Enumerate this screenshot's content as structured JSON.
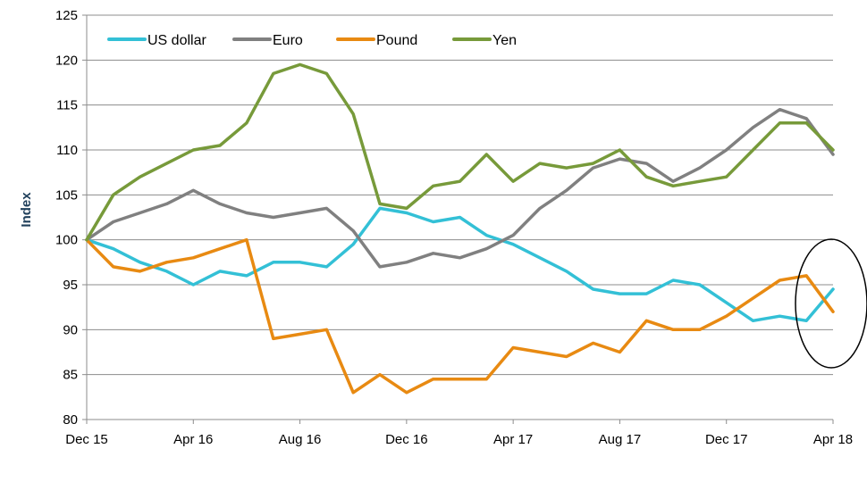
{
  "chart_data": {
    "type": "line",
    "title": "",
    "xlabel": "",
    "ylabel": "Index",
    "ylim": [
      80,
      125
    ],
    "yticks": [
      "80",
      "85",
      "90",
      "95",
      "100",
      "105",
      "110",
      "115",
      "120",
      "125"
    ],
    "xlim": [
      "2015-12",
      "2018-04"
    ],
    "xticks": [
      "Dec 15",
      "Apr 16",
      "Aug 16",
      "Dec 16",
      "Apr 17",
      "Aug 17",
      "Dec 17",
      "Apr 18"
    ],
    "grid": "horizontal",
    "legend": "top-left",
    "annotation": "ellipse around Apr 18 values",
    "series": [
      {
        "name": "US dollar",
        "color": "#33c0d6",
        "x": [
          "2015-12",
          "2016-01",
          "2016-02",
          "2016-03",
          "2016-04",
          "2016-05",
          "2016-06",
          "2016-07",
          "2016-08",
          "2016-09",
          "2016-10",
          "2016-11",
          "2016-12",
          "2017-01",
          "2017-02",
          "2017-03",
          "2017-04",
          "2017-05",
          "2017-06",
          "2017-07",
          "2017-08",
          "2017-09",
          "2017-10",
          "2017-11",
          "2017-12",
          "2018-01",
          "2018-02",
          "2018-03",
          "2018-04"
        ],
        "values": [
          100.0,
          99.0,
          97.5,
          96.5,
          95.0,
          96.5,
          96.0,
          97.5,
          97.5,
          97.0,
          99.5,
          103.5,
          103.0,
          102.0,
          102.5,
          100.5,
          99.5,
          98.0,
          96.5,
          94.5,
          94.0,
          94.0,
          95.5,
          95.0,
          93.0,
          91.0,
          91.5,
          91.0,
          94.5
        ]
      },
      {
        "name": "Euro",
        "color": "#808080",
        "x": [
          "2015-12",
          "2016-01",
          "2016-02",
          "2016-03",
          "2016-04",
          "2016-05",
          "2016-06",
          "2016-07",
          "2016-08",
          "2016-09",
          "2016-10",
          "2016-11",
          "2016-12",
          "2017-01",
          "2017-02",
          "2017-03",
          "2017-04",
          "2017-05",
          "2017-06",
          "2017-07",
          "2017-08",
          "2017-09",
          "2017-10",
          "2017-11",
          "2017-12",
          "2018-01",
          "2018-02",
          "2018-03",
          "2018-04"
        ],
        "values": [
          100.0,
          102.0,
          103.0,
          104.0,
          105.5,
          104.0,
          103.0,
          102.5,
          103.0,
          103.5,
          101.0,
          97.0,
          97.5,
          98.5,
          98.0,
          99.0,
          100.5,
          103.5,
          105.5,
          108.0,
          109.0,
          108.5,
          106.5,
          108.0,
          110.0,
          112.5,
          114.5,
          113.5,
          109.5
        ]
      },
      {
        "name": "Pound",
        "color": "#e88a12",
        "x": [
          "2015-12",
          "2016-01",
          "2016-02",
          "2016-03",
          "2016-04",
          "2016-05",
          "2016-06",
          "2016-07",
          "2016-08",
          "2016-09",
          "2016-10",
          "2016-11",
          "2016-12",
          "2017-01",
          "2017-02",
          "2017-03",
          "2017-04",
          "2017-05",
          "2017-06",
          "2017-07",
          "2017-08",
          "2017-09",
          "2017-10",
          "2017-11",
          "2017-12",
          "2018-01",
          "2018-02",
          "2018-03",
          "2018-04"
        ],
        "values": [
          100.0,
          97.0,
          96.5,
          97.5,
          98.0,
          99.0,
          100.0,
          89.0,
          89.5,
          90.0,
          83.0,
          85.0,
          83.0,
          84.5,
          84.5,
          84.5,
          88.0,
          87.5,
          87.0,
          88.5,
          87.5,
          91.0,
          90.0,
          90.0,
          91.5,
          93.5,
          95.5,
          96.0,
          92.0
        ]
      },
      {
        "name": "Yen",
        "color": "#779a3a",
        "x": [
          "2015-12",
          "2016-01",
          "2016-02",
          "2016-03",
          "2016-04",
          "2016-05",
          "2016-06",
          "2016-07",
          "2016-08",
          "2016-09",
          "2016-10",
          "2016-11",
          "2016-12",
          "2017-01",
          "2017-02",
          "2017-03",
          "2017-04",
          "2017-05",
          "2017-06",
          "2017-07",
          "2017-08",
          "2017-09",
          "2017-10",
          "2017-11",
          "2017-12",
          "2018-01",
          "2018-02",
          "2018-03",
          "2018-04"
        ],
        "values": [
          100.0,
          105.0,
          107.0,
          108.5,
          110.0,
          110.5,
          113.0,
          118.5,
          119.5,
          118.5,
          114.0,
          104.0,
          103.5,
          106.0,
          106.5,
          109.5,
          106.5,
          108.5,
          108.0,
          108.5,
          110.0,
          107.0,
          106.0,
          106.5,
          107.0,
          110.0,
          113.0,
          113.0,
          110.0
        ]
      }
    ]
  }
}
